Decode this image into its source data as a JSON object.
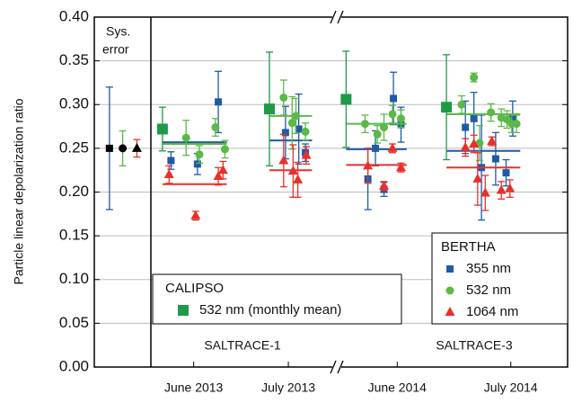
{
  "chart_data": {
    "type": "scatter",
    "ylabel": "Particle linear depolarization ratio",
    "annotations": [
      "Sys.",
      "error",
      "SALTRACE-1",
      "SALTRACE-3"
    ],
    "xlim": [
      0,
      5
    ],
    "xticks": [
      {
        "value": 1.05,
        "label": "June 2013"
      },
      {
        "value": 2.05,
        "label": "July 2013"
      },
      {
        "value": 3.2,
        "label": "June 2014"
      },
      {
        "value": 4.4,
        "label": "July 2014"
      }
    ],
    "ylim": [
      0,
      0.4
    ],
    "yticks": [
      {
        "value": 0,
        "label": "0.00"
      },
      0.05,
      {
        "value": 0.1,
        "label": "0.10"
      },
      0.15,
      {
        "value": 0.2,
        "label": "0.20"
      },
      0.25,
      {
        "value": 0.3,
        "label": "0.30"
      },
      0.35,
      {
        "value": 0.4,
        "label": "0.40"
      }
    ],
    "grid": true,
    "legends": [
      {
        "title": "BERTHA",
        "series": [
          0,
          1,
          2
        ]
      },
      {
        "title": "CALIPSO",
        "series": [
          3
        ]
      }
    ],
    "series": [
      {
        "name": "355 nm",
        "color": "#1f5aa6",
        "marker": "square",
        "x": [
          0.81,
          1.09,
          1.31,
          2.02,
          2.16,
          2.23,
          2.89,
          2.97,
          3.06,
          3.16,
          3.24,
          3.92,
          4.01,
          4.09,
          4.24,
          4.35,
          4.42
        ],
        "values": [
          0.236,
          0.232,
          0.303,
          0.268,
          0.272,
          0.245,
          0.215,
          0.25,
          0.203,
          0.307,
          0.277,
          0.274,
          0.284,
          0.228,
          0.238,
          0.222,
          0.284
        ],
        "errors": [
          0.01,
          0.012,
          0.035,
          0.03,
          0.04,
          0.01,
          0.035,
          0.02,
          0.008,
          0.03,
          0.02,
          0.03,
          0.03,
          0.06,
          0.03,
          0.015,
          0.02
        ],
        "means": {
          "x_start": [
            0.72,
            1.85,
            2.66,
            3.72
          ],
          "x_end": [
            1.4,
            2.3,
            3.3,
            4.5
          ],
          "values": [
            0.257,
            0.259,
            0.249,
            0.247
          ]
        }
      },
      {
        "name": "532 nm",
        "color": "#5bb947",
        "marker": "circle",
        "x": [
          0.97,
          1.11,
          1.28,
          1.38,
          2.0,
          2.09,
          2.13,
          2.23,
          2.86,
          2.99,
          3.06,
          3.15,
          3.24,
          3.88,
          4.01,
          4.07,
          4.19,
          4.3,
          4.36,
          4.41,
          4.46
        ],
        "values": [
          0.262,
          0.243,
          0.274,
          0.249,
          0.308,
          0.279,
          0.287,
          0.269,
          0.278,
          0.266,
          0.274,
          0.289,
          0.284,
          0.3,
          0.331,
          0.256,
          0.291,
          0.285,
          0.283,
          0.278,
          0.278
        ],
        "errors": [
          0.02,
          0.01,
          0.01,
          0.01,
          0.02,
          0.03,
          0.02,
          0.01,
          0.01,
          0.01,
          0.015,
          0.01,
          0.01,
          0.01,
          0.005,
          0.02,
          0.01,
          0.01,
          0.01,
          0.01,
          0.01
        ],
        "means": {
          "x_start": [
            0.72,
            1.85,
            2.66,
            3.72
          ],
          "x_end": [
            1.4,
            2.3,
            3.3,
            4.5
          ],
          "values": [
            0.255,
            0.287,
            0.278,
            0.289
          ]
        }
      },
      {
        "name": "1064 nm",
        "color": "#e8302a",
        "marker": "triangle",
        "x": [
          0.79,
          1.07,
          1.31,
          1.36,
          2.0,
          2.1,
          2.15,
          2.24,
          2.89,
          3.06,
          3.15,
          3.24,
          3.92,
          4.01,
          4.05,
          4.13,
          4.2,
          4.3,
          4.39
        ],
        "values": [
          0.22,
          0.173,
          0.218,
          0.225,
          0.236,
          0.224,
          0.214,
          0.242,
          0.23,
          0.207,
          0.25,
          0.228,
          0.251,
          0.255,
          0.215,
          0.199,
          0.258,
          0.202,
          0.204
        ],
        "errors": [
          0.01,
          0.005,
          0.01,
          0.01,
          0.03,
          0.03,
          0.02,
          0.01,
          0.02,
          0.005,
          0.005,
          0.005,
          0.01,
          0.01,
          0.03,
          0.02,
          0.005,
          0.01,
          0.01
        ],
        "means": {
          "x_start": [
            0.72,
            1.85,
            2.66,
            3.72
          ],
          "x_end": [
            1.4,
            2.3,
            3.3,
            4.5
          ],
          "values": [
            0.209,
            0.225,
            0.231,
            0.228
          ]
        }
      },
      {
        "name": "532 nm (monthly mean)",
        "color": "#1e9a48",
        "marker": "bigsquare",
        "x": [
          0.72,
          1.85,
          2.66,
          3.72
        ],
        "values": [
          0.272,
          0.295,
          0.306,
          0.297
        ],
        "errors": [
          0.025,
          0.065,
          0.055,
          0.06
        ]
      }
    ],
    "sys_error": {
      "x": [
        0.16,
        0.3,
        0.45
      ],
      "values": [
        0.25,
        0.25,
        0.25
      ],
      "errors": [
        0.07,
        0.02,
        0.01
      ],
      "marker_color": "#000000"
    }
  }
}
